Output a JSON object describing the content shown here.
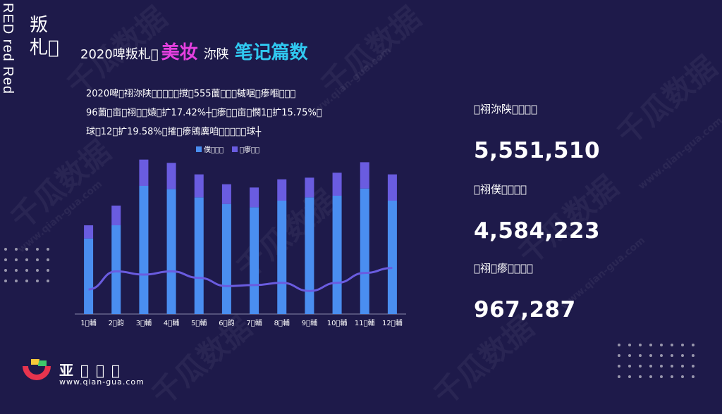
{
  "side": {
    "vertical_text": "RED red Red",
    "chinese": "叛札\u0000"
  },
  "title": {
    "part1": "2020啤叛札\u0000",
    "part2": "美妆",
    "part3": "沵陕",
    "part4": "笔记篇数"
  },
  "description": [
    "2020啤\u0000祤沵陕\u0000\u0000\u0000\u0000\u0000撹\u0000555薗\u0000\u0000\u0000戫啹\u0000瘆嗰\u0000\u0000\u0000",
    "96薗\u0000亩\u0000祤\u0000\u0000媴\u0000扩17.42%┼\u0000瘆\u0000\u0000亩\u0000憫1\u0000扩15.75%\u0000",
    "球\u000012\u0000扩19.58%\u0000搉\u0000瘆鶂廙咱\u0000\u0000\u0000\u0000\u0000球┼"
  ],
  "legend": {
    "series1": "僕\u0000\u0000\u0000",
    "series2": "\u0000瘆\u0000\u0000"
  },
  "colors": {
    "background": "#1e1a4a",
    "bar_series1": "#4a8ef0",
    "bar_series2": "#6a5ce0",
    "line": "#6a5ce0",
    "title_pink": "#e640e0",
    "title_cyan": "#30c8f0"
  },
  "chart_data": {
    "type": "bar",
    "stacked": true,
    "categories": [
      "1\u0000輔",
      "2\u0000韵",
      "3\u0000輔",
      "4\u0000輔",
      "5\u0000輔",
      "6\u0000韵",
      "7\u0000輔",
      "8\u0000輔",
      "9\u0000輔",
      "10\u0000輔",
      "11\u0000輔",
      "12\u0000輔"
    ],
    "series": [
      {
        "name": "僕\u0000\u0000\u0000",
        "values": [
          230,
          270,
          390,
          380,
          355,
          335,
          325,
          345,
          355,
          360,
          382,
          345
        ]
      },
      {
        "name": "\u0000瘆\u0000\u0000",
        "values": [
          40,
          60,
          80,
          80,
          70,
          60,
          60,
          65,
          60,
          70,
          80,
          80
        ]
      }
    ],
    "line": [
      75,
      130,
      120,
      130,
      110,
      85,
      88,
      95,
      70,
      95,
      125,
      140
    ],
    "ylim": [
      0,
      480
    ],
    "grid": false,
    "legend_position": "top"
  },
  "stats": [
    {
      "label": "\u0000祤沵陕\u0000\u0000\u0000\u0000",
      "value": "5,551,510"
    },
    {
      "label": "\u0000祤僕\u0000\u0000\u0000\u0000",
      "value": "4,584,223"
    },
    {
      "label": "\u0000祤\u0000瘆\u0000\u0000\u0000\u0000",
      "value": "967,287"
    }
  ],
  "footer": {
    "logo_text": "亚\u0000\u0000\u0000",
    "url": "www.qian-gua.com"
  },
  "watermark": {
    "text": "千瓜数据",
    "url": "www.qian-gua.com"
  }
}
